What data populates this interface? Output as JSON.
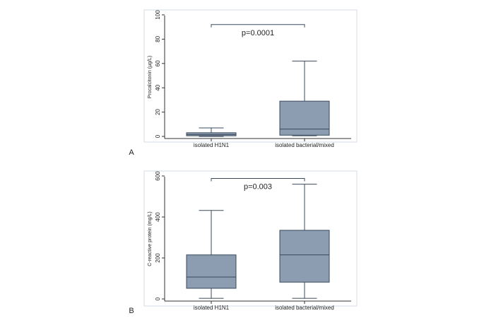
{
  "chart_data": [
    {
      "type": "box",
      "panel_label": "A",
      "title": "",
      "xlabel": "",
      "ylabel": "Procalcitonin (µg/L)",
      "ylim": [
        0,
        100
      ],
      "yticks": [
        "0",
        "20",
        "40",
        "60",
        "80",
        "100"
      ],
      "grid": false,
      "categories": [
        "isolated H1N1",
        "isolated bacterial/mixed"
      ],
      "boxes": [
        {
          "whisker_low": 0,
          "q1": 0.5,
          "median": 1.5,
          "q3": 3,
          "whisker_high": 7
        },
        {
          "whisker_low": 0.5,
          "q1": 1,
          "median": 6,
          "q3": 29,
          "whisker_high": 62
        }
      ],
      "annotation": {
        "text": "p=0.0001",
        "y": 92
      }
    },
    {
      "type": "box",
      "panel_label": "B",
      "title": "",
      "xlabel": "",
      "ylabel": "C-reactive protein (mg/L)",
      "ylim": [
        0,
        600
      ],
      "yticks": [
        "0",
        "200",
        "400",
        "600"
      ],
      "grid": false,
      "categories": [
        "isolated H1N1",
        "isolated bacterial/mixed"
      ],
      "boxes": [
        {
          "whisker_low": 3,
          "q1": 52,
          "median": 107,
          "q3": 215,
          "whisker_high": 432
        },
        {
          "whisker_low": 3,
          "q1": 82,
          "median": 215,
          "q3": 335,
          "whisker_high": 560
        }
      ],
      "annotation": {
        "text": "p=0.003",
        "y": 588
      }
    }
  ],
  "colors": {
    "box_fill": "#8c9cb1",
    "line": "#3a4a5c",
    "axis": "#333333",
    "frame": "#d4dde4",
    "text": "#222222"
  }
}
